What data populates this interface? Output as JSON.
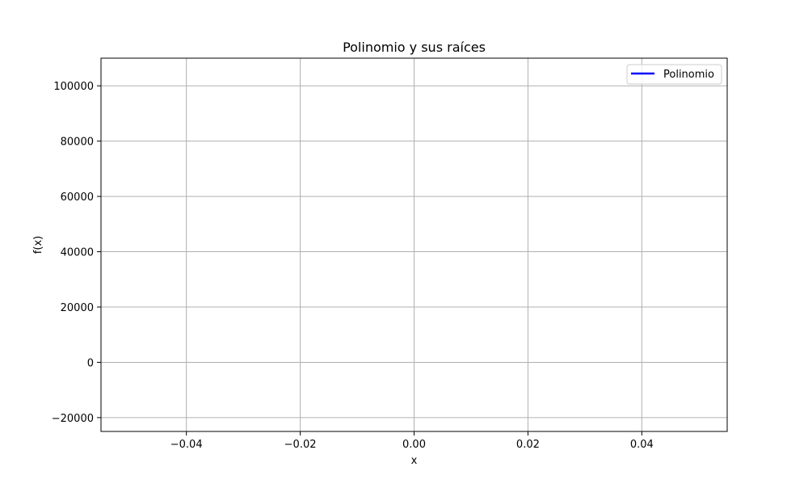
{
  "chart_data": {
    "type": "line",
    "title": "Polinomio y sus raíces",
    "xlabel": "x",
    "ylabel": "f(x)",
    "xlim": [
      -0.055,
      0.055
    ],
    "ylim": [
      -25000,
      110000
    ],
    "xticks": [
      -0.04,
      -0.02,
      0.0,
      0.02,
      0.04
    ],
    "xtick_labels": [
      "−0.04",
      "−0.02",
      "0.00",
      "0.02",
      "0.04"
    ],
    "yticks": [
      -20000,
      0,
      20000,
      40000,
      60000,
      80000,
      100000
    ],
    "ytick_labels": [
      "−20000",
      "0",
      "20000",
      "40000",
      "60000",
      "80000",
      "100000"
    ],
    "grid": true,
    "legend_position": "upper right",
    "series": [
      {
        "name": "Polinomio",
        "color": "#0000ff",
        "x": [],
        "y": []
      }
    ]
  },
  "colors": {
    "grid": "#b0b0b0",
    "axes": "#000000",
    "background": "#ffffff"
  }
}
